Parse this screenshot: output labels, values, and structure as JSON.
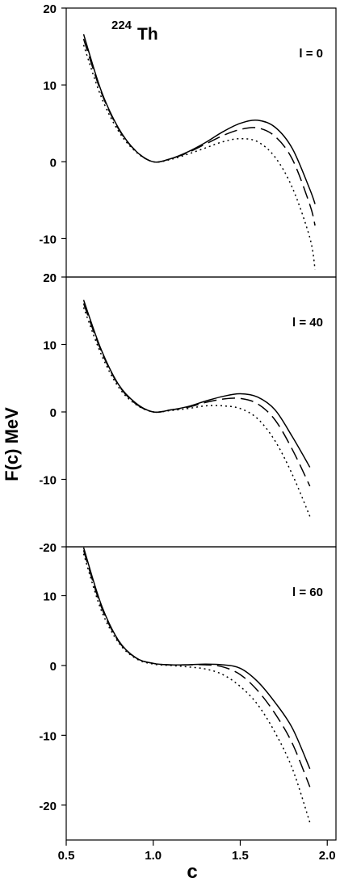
{
  "figure": {
    "nucleus_mass": "224",
    "nucleus_symbol": "Th",
    "ylabel": "F(c) MeV",
    "xlabel": "c"
  },
  "chart_data": [
    {
      "type": "line",
      "label": "l = 0",
      "xlim": [
        0.5,
        2.05
      ],
      "ylim": [
        -15,
        20
      ],
      "y_ticks": [
        20,
        10,
        0,
        -10
      ],
      "y_tick_labels": [
        "20",
        "10",
        "0",
        "-10"
      ],
      "bottom_partial_label": "20",
      "series": [
        {
          "style": "solid",
          "x": [
            0.6,
            0.7,
            0.8,
            0.9,
            1.0,
            1.1,
            1.2,
            1.3,
            1.4,
            1.5,
            1.6,
            1.7,
            1.8,
            1.9,
            1.93
          ],
          "y": [
            16.6,
            9.3,
            4.4,
            1.4,
            0.0,
            0.4,
            1.3,
            2.5,
            3.9,
            5.0,
            5.4,
            4.5,
            1.7,
            -3.6,
            -5.5
          ]
        },
        {
          "style": "dashed",
          "x": [
            0.6,
            0.7,
            0.8,
            0.9,
            1.0,
            1.1,
            1.2,
            1.3,
            1.4,
            1.5,
            1.6,
            1.7,
            1.8,
            1.9,
            1.93
          ],
          "y": [
            16.0,
            9.1,
            4.3,
            1.4,
            0.0,
            0.4,
            1.2,
            2.3,
            3.4,
            4.2,
            4.4,
            3.3,
            0.3,
            -5.6,
            -8.3
          ]
        },
        {
          "style": "dotted",
          "x": [
            0.6,
            0.7,
            0.8,
            0.9,
            1.0,
            1.1,
            1.2,
            1.3,
            1.4,
            1.5,
            1.6,
            1.7,
            1.8,
            1.9,
            1.93
          ],
          "y": [
            15.2,
            8.5,
            4.0,
            1.3,
            0.0,
            0.3,
            1.0,
            1.8,
            2.6,
            3.0,
            2.6,
            0.6,
            -3.4,
            -9.9,
            -14.0
          ]
        }
      ]
    },
    {
      "type": "line",
      "label": "l = 40",
      "xlim": [
        0.5,
        2.05
      ],
      "ylim": [
        -20,
        20
      ],
      "y_ticks": [
        20,
        10,
        0,
        -10,
        -20
      ],
      "y_tick_labels": [
        "20",
        "10",
        "0",
        "-10",
        "-20"
      ],
      "series": [
        {
          "style": "solid",
          "x": [
            0.6,
            0.7,
            0.8,
            0.9,
            1.0,
            1.1,
            1.2,
            1.3,
            1.4,
            1.5,
            1.6,
            1.7,
            1.8,
            1.9
          ],
          "y": [
            16.6,
            9.3,
            4.1,
            1.3,
            0.0,
            0.3,
            0.8,
            1.6,
            2.3,
            2.7,
            2.2,
            0.3,
            -3.7,
            -8.2
          ]
        },
        {
          "style": "dashed",
          "x": [
            0.6,
            0.7,
            0.8,
            0.9,
            1.0,
            1.1,
            1.2,
            1.3,
            1.4,
            1.5,
            1.6,
            1.7,
            1.8,
            1.9
          ],
          "y": [
            16.1,
            9.1,
            4.0,
            1.2,
            0.0,
            0.3,
            0.7,
            1.4,
            1.9,
            2.0,
            1.2,
            -1.2,
            -5.6,
            -11.0
          ]
        },
        {
          "style": "dotted",
          "x": [
            0.6,
            0.7,
            0.8,
            0.9,
            1.0,
            1.1,
            1.2,
            1.3,
            1.4,
            1.5,
            1.6,
            1.7,
            1.8,
            1.9
          ],
          "y": [
            15.5,
            8.6,
            3.7,
            1.1,
            0.0,
            0.2,
            0.5,
            0.9,
            0.9,
            0.5,
            -1.0,
            -4.3,
            -9.3,
            -15.5
          ]
        }
      ]
    },
    {
      "type": "line",
      "label": "l = 60",
      "xlim": [
        0.5,
        2.05
      ],
      "ylim": [
        -25,
        17
      ],
      "y_ticks": [
        10,
        0,
        -10,
        -20
      ],
      "y_tick_labels": [
        "10",
        "0",
        "-10",
        "-20"
      ],
      "series": [
        {
          "style": "solid",
          "x": [
            0.6,
            0.7,
            0.8,
            0.9,
            1.0,
            1.1,
            1.2,
            1.3,
            1.4,
            1.5,
            1.6,
            1.7,
            1.8,
            1.9
          ],
          "y": [
            16.9,
            8.8,
            3.6,
            1.1,
            0.3,
            0.1,
            0.1,
            0.2,
            0.1,
            -0.4,
            -2.3,
            -5.3,
            -9.0,
            -14.8
          ]
        },
        {
          "style": "dashed",
          "x": [
            0.6,
            0.7,
            0.8,
            0.9,
            1.0,
            1.1,
            1.2,
            1.3,
            1.4,
            1.5,
            1.6,
            1.7,
            1.8,
            1.9
          ],
          "y": [
            16.5,
            8.5,
            3.5,
            1.1,
            0.3,
            0.1,
            0.1,
            0.1,
            -0.2,
            -1.3,
            -3.6,
            -6.9,
            -11.2,
            -17.4
          ]
        },
        {
          "style": "dotted",
          "x": [
            0.6,
            0.7,
            0.8,
            0.9,
            1.0,
            1.1,
            1.2,
            1.3,
            1.4,
            1.5,
            1.6,
            1.7,
            1.8,
            1.9
          ],
          "y": [
            16.0,
            8.0,
            3.3,
            1.0,
            0.2,
            0.0,
            -0.2,
            -0.5,
            -1.3,
            -3.0,
            -5.6,
            -9.6,
            -14.8,
            -22.5
          ]
        }
      ]
    }
  ],
  "x_ticks": [
    0.5,
    1.0,
    1.5,
    2.0
  ],
  "x_tick_labels": [
    "0.5",
    "1.0",
    "1.5",
    "2.0"
  ]
}
